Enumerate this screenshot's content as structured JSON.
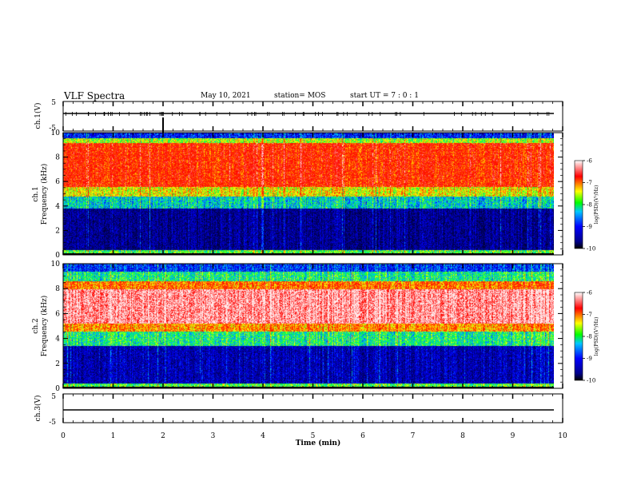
{
  "header": {
    "title": "VLF Spectra",
    "date": "May 10, 2021",
    "station": "station= MOS",
    "start": "start  UT =   7 : 0  : 1"
  },
  "chart_data": [
    {
      "type": "line",
      "panel": "ch1-waveform",
      "ylabel": "ch.1(V)",
      "ylim": [
        -5,
        5
      ],
      "yticks": [
        "5",
        "-5"
      ],
      "series": [
        {
          "values_description_free": true,
          "y_level": 0
        }
      ],
      "x": [
        0,
        10
      ]
    },
    {
      "type": "heatmap",
      "panel": "ch1-spectrogram",
      "ylabel": "ch.1\nFrequency (kHz)",
      "ylabel_line1": "ch.1",
      "ylabel_line2": "Frequency (kHz)",
      "ylim": [
        0,
        10
      ],
      "yticks": [
        "0",
        "2",
        "4",
        "6",
        "8",
        "10"
      ],
      "colorbar": {
        "label": "log(PSD)(V²/Hz)",
        "range": [
          -10,
          -6
        ],
        "ticks": [
          "-6",
          "-7",
          "-8",
          "-9",
          "-10"
        ]
      },
      "bands": [
        {
          "from_khz": 0,
          "to_khz": 0.4,
          "level": -8
        },
        {
          "from_khz": 0.4,
          "to_khz": 3.8,
          "level": -9.6
        },
        {
          "from_khz": 3.8,
          "to_khz": 4.8,
          "level": -8.4
        },
        {
          "from_khz": 4.8,
          "to_khz": 5.6,
          "level": -7.6
        },
        {
          "from_khz": 5.6,
          "to_khz": 9.2,
          "level": -6.9
        },
        {
          "from_khz": 9.2,
          "to_khz": 9.6,
          "level": -7.8
        },
        {
          "from_khz": 9.6,
          "to_khz": 10,
          "level": -9
        }
      ]
    },
    {
      "type": "heatmap",
      "panel": "ch2-spectrogram",
      "ylabel_line1": "ch.2",
      "ylabel_line2": "Frequency (kHz)",
      "ylim": [
        0,
        10
      ],
      "yticks": [
        "0",
        "2",
        "4",
        "6",
        "8",
        "10"
      ],
      "colorbar": {
        "label": "log(PSD)(V²/Hz)",
        "range": [
          -10,
          -6
        ],
        "ticks": [
          "-6",
          "-7",
          "-8",
          "-9",
          "-10"
        ]
      },
      "bands": [
        {
          "from_khz": 0,
          "to_khz": 0.4,
          "level": -8
        },
        {
          "from_khz": 0.4,
          "to_khz": 3.4,
          "level": -9.4
        },
        {
          "from_khz": 3.4,
          "to_khz": 4.6,
          "level": -8.2
        },
        {
          "from_khz": 4.6,
          "to_khz": 5.2,
          "level": -7.3
        },
        {
          "from_khz": 5.2,
          "to_khz": 8.0,
          "level": -6.2
        },
        {
          "from_khz": 8.0,
          "to_khz": 8.6,
          "level": -7.2
        },
        {
          "from_khz": 8.6,
          "to_khz": 9.4,
          "level": -8.2
        },
        {
          "from_khz": 9.4,
          "to_khz": 10,
          "level": -8.9
        }
      ]
    },
    {
      "type": "line",
      "panel": "ch3-waveform",
      "ylabel": "ch.3(V)",
      "ylim": [
        -5,
        5
      ],
      "yticks": [
        "5",
        "-5"
      ],
      "series": [
        {
          "y_level": -1.2
        }
      ],
      "xlabel": "Time (min)",
      "xlim": [
        0,
        10
      ],
      "xticks": [
        "0",
        "1",
        "2",
        "3",
        "4",
        "5",
        "6",
        "7",
        "8",
        "9",
        "10"
      ]
    }
  ],
  "colors": {
    "axis": "#000000",
    "colormap": [
      "#00008b",
      "#0000ff",
      "#00c8ff",
      "#00ff00",
      "#ffff00",
      "#ff0000",
      "#ffffff"
    ]
  }
}
